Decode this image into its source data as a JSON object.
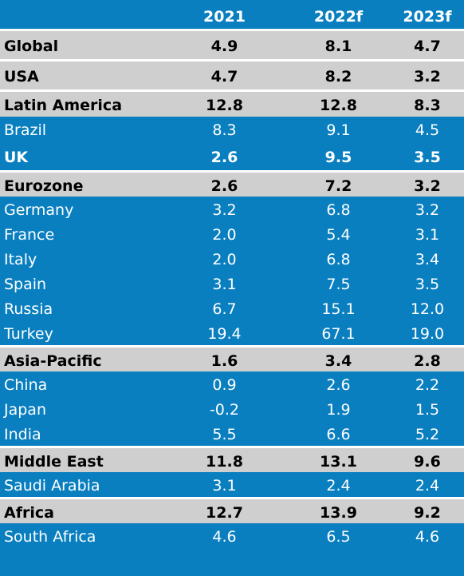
{
  "header": [
    "",
    "2021",
    "2022f",
    "2023f"
  ],
  "rows": [
    {
      "name": "Global",
      "v": [
        "4.9",
        "8.1",
        "4.7"
      ],
      "type": "bold"
    },
    {
      "name": "USA",
      "v": [
        "4.7",
        "8.2",
        "3.2"
      ],
      "type": "bold"
    },
    {
      "name": "Latin America",
      "v": [
        "12.8",
        "12.8",
        "8.3"
      ],
      "type": "bold"
    },
    {
      "name": "Brazil",
      "v": [
        "8.3",
        "9.1",
        "4.5"
      ],
      "type": "plain"
    },
    {
      "name": "UK",
      "v": [
        "2.6",
        "9.5",
        "3.5"
      ],
      "type": "bold-blue"
    },
    {
      "name": "Eurozone",
      "v": [
        "2.6",
        "7.2",
        "3.2"
      ],
      "type": "bold"
    },
    {
      "name": "Germany",
      "v": [
        "3.2",
        "6.8",
        "3.2"
      ],
      "type": "plain"
    },
    {
      "name": "France",
      "v": [
        "2.0",
        "5.4",
        "3.1"
      ],
      "type": "plain"
    },
    {
      "name": "Italy",
      "v": [
        "2.0",
        "6.8",
        "3.4"
      ],
      "type": "plain"
    },
    {
      "name": "Spain",
      "v": [
        "3.1",
        "7.5",
        "3.5"
      ],
      "type": "plain"
    },
    {
      "name": "Russia",
      "v": [
        "6.7",
        "15.1",
        "12.0"
      ],
      "type": "plain"
    },
    {
      "name": "Turkey",
      "v": [
        "19.4",
        "67.1",
        "19.0"
      ],
      "type": "plain"
    },
    {
      "name": "Asia-Pacific",
      "v": [
        "1.6",
        "3.4",
        "2.8"
      ],
      "type": "bold"
    },
    {
      "name": "China",
      "v": [
        "0.9",
        "2.6",
        "2.2"
      ],
      "type": "plain"
    },
    {
      "name": "Japan",
      "v": [
        "-0.2",
        "1.9",
        "1.5"
      ],
      "type": "plain"
    },
    {
      "name": "India",
      "v": [
        "5.5",
        "6.6",
        "5.2"
      ],
      "type": "plain"
    },
    {
      "name": "Middle East",
      "v": [
        "11.8",
        "13.1",
        "9.6"
      ],
      "type": "bold"
    },
    {
      "name": "Saudi Arabia",
      "v": [
        "3.1",
        "2.4",
        "2.4"
      ],
      "type": "plain"
    },
    {
      "name": "Africa",
      "v": [
        "12.7",
        "13.9",
        "9.2"
      ],
      "type": "bold"
    },
    {
      "name": "South Africa",
      "v": [
        "4.6",
        "6.5",
        "4.6"
      ],
      "type": "plain"
    }
  ],
  "colors": {
    "background": "#0a7fc0",
    "highlight_row": "#cfcfcf",
    "text_light": "#ffffff",
    "text_dark": "#000000"
  }
}
